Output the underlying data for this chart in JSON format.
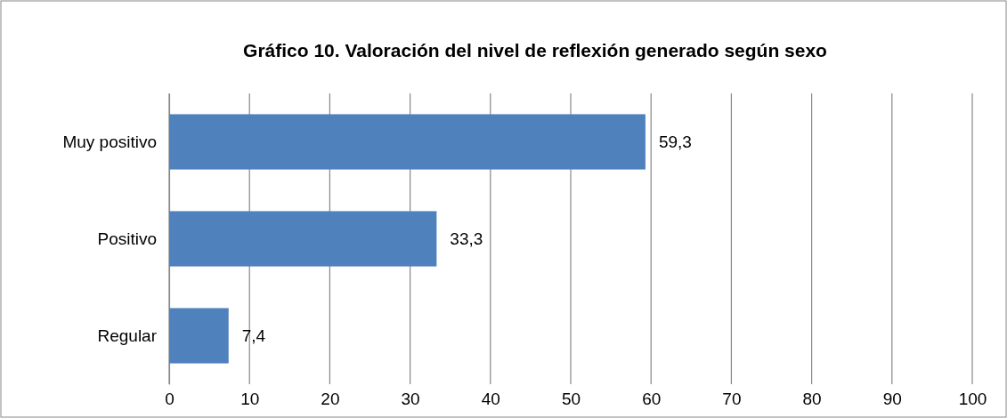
{
  "chart_data": {
    "type": "bar",
    "orientation": "horizontal",
    "title": "Gráfico 10. Valoración del nivel de reflexión generado según sexo",
    "categories": [
      "Muy positivo",
      "Positivo",
      "Regular"
    ],
    "values": [
      59.3,
      33.3,
      7.4
    ],
    "value_labels": [
      "59,3",
      "33,3",
      "7,4"
    ],
    "color": "#4f81bd",
    "xlim": [
      0,
      100
    ],
    "xticks": [
      0,
      10,
      20,
      30,
      40,
      50,
      60,
      70,
      80,
      90,
      100
    ],
    "grid": "x"
  }
}
